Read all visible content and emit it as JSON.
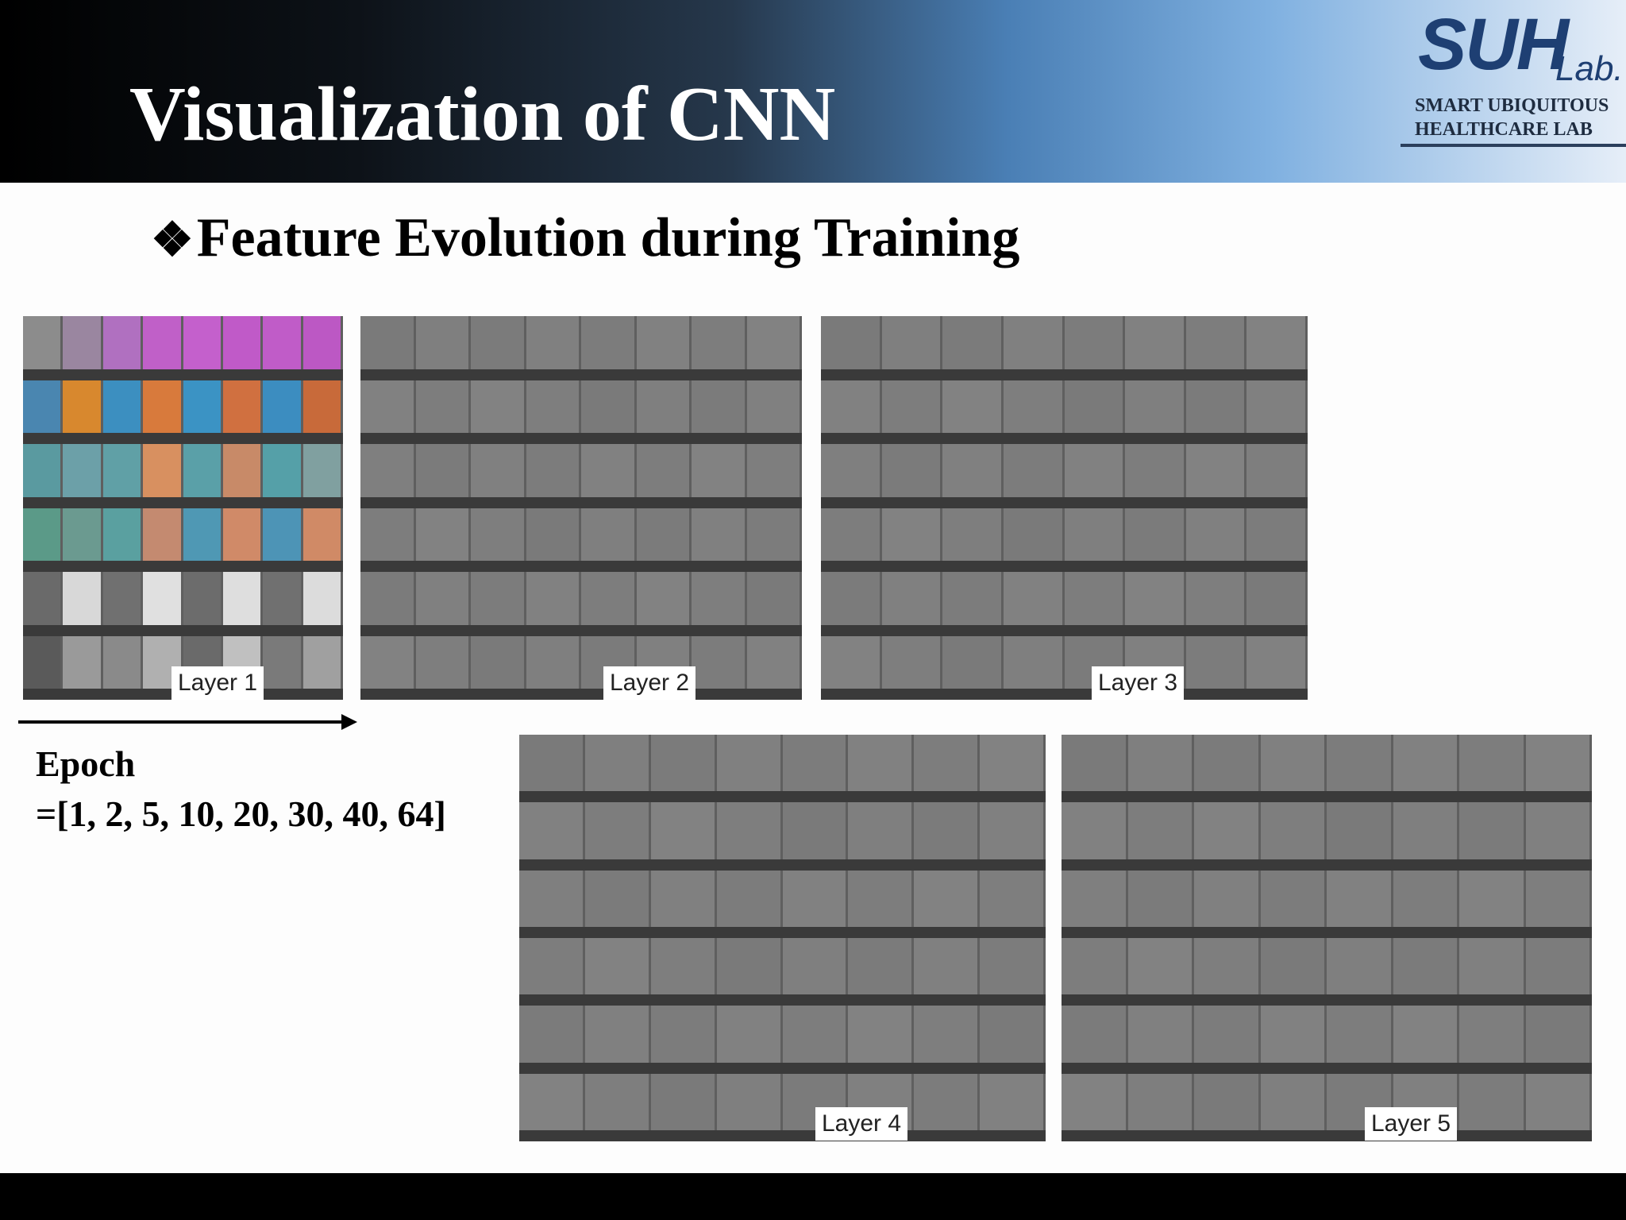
{
  "header": {
    "title": "Visualization of CNN"
  },
  "logo": {
    "brand": "SUH",
    "brand_suffix": "Lab.",
    "line1": "SMART UBIQUITOUS",
    "line2": "HEALTHCARE LAB"
  },
  "subtitle": {
    "bullet": "❖",
    "text": "Feature Evolution during Training"
  },
  "figure": {
    "layers": [
      {
        "label": "Layer 1",
        "rows": 6,
        "cols": 8
      },
      {
        "label": "Layer 2",
        "rows": 6,
        "cols": 8
      },
      {
        "label": "Layer 3",
        "rows": 6,
        "cols": 8
      },
      {
        "label": "Layer 4",
        "rows": 6,
        "cols": 8
      },
      {
        "label": "Layer 5",
        "rows": 6,
        "cols": 8
      }
    ]
  },
  "epoch": {
    "label": "Epoch",
    "values": "=[1, 2, 5, 10, 20, 30, 40, 64]"
  },
  "colors": {
    "title_text": "#ffffff",
    "logo_blue": "#1e3f73",
    "panel_gray": "#7e7e7e"
  }
}
